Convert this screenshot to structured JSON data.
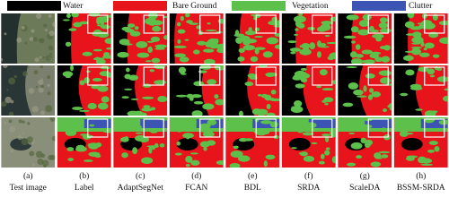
{
  "legend": {
    "items": [
      {
        "label": "Water",
        "color": "#000000"
      },
      {
        "label": "Bare Ground",
        "color": "#e8141c"
      },
      {
        "label": "Vegetation",
        "color": "#5cc04a"
      },
      {
        "label": "Clutter",
        "color": "#3c55b4"
      }
    ]
  },
  "columns": [
    {
      "letter": "(a)",
      "name": "Test image"
    },
    {
      "letter": "(b)",
      "name": "Label"
    },
    {
      "letter": "(c)",
      "name": "AdaptSegNet"
    },
    {
      "letter": "(d)",
      "name": "FCAN"
    },
    {
      "letter": "(e)",
      "name": "BDL"
    },
    {
      "letter": "(f)",
      "name": "SRDA"
    },
    {
      "letter": "(g)",
      "name": "ScaleDA"
    },
    {
      "letter": "(h)",
      "name": "BSSM-SRDA"
    }
  ]
}
